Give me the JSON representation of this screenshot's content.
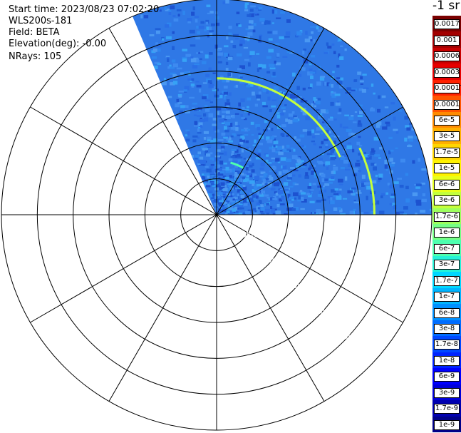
{
  "info": {
    "start_time": "Start time: 2023/08/23 07:02:20",
    "instrument": "WLS200s-181",
    "field": "Field: BETA",
    "elevation": "Elevation(deg): -0.00",
    "nrays": "NRays: 105"
  },
  "chart_data": {
    "type": "heatmap",
    "projection": "polar-ppi",
    "field": "BETA",
    "colorbar_title": "-1 sr",
    "colorbar_labels": [
      "0.0017",
      "0.001",
      "0.0006",
      "0.0003",
      "0.00017",
      "0.0001",
      "6e-5",
      "3e-5",
      "1.7e-5",
      "1e-5",
      "6e-6",
      "3e-6",
      "1.7e-6",
      "1e-6",
      "6e-7",
      "3e-7",
      "1.7e-7",
      "1e-7",
      "6e-8",
      "3e-8",
      "1.7e-8",
      "1e-8",
      "6e-9",
      "3e-9",
      "1.7e-9",
      "1e-9"
    ],
    "colorbar_colors": [
      "#7a0000",
      "#a30000",
      "#c80000",
      "#e60000",
      "#ff2000",
      "#ff5500",
      "#ff8a00",
      "#ffb000",
      "#ffd500",
      "#fff200",
      "#e8ff1a",
      "#c4ff3b",
      "#9dff5e",
      "#76ff85",
      "#4dffaf",
      "#25f2d8",
      "#00d8ff",
      "#00b4ff",
      "#0090ff",
      "#006cff",
      "#0048ff",
      "#0024ff",
      "#0000ff",
      "#0000d8",
      "#0000b0",
      "#000088"
    ],
    "range_rings_km": [
      "1.00km",
      "2.00km",
      "3.00km",
      "4.00km",
      "5.00km"
    ],
    "first_ring_label": "0",
    "ring_count": 6,
    "spoke_count": 12,
    "data_sector_deg": [
      -23,
      90
    ],
    "background_color": "#2f78e6",
    "streaks": [
      {
        "az_start": 0,
        "az_end": 65,
        "range_km": 3.8,
        "color": "#c4ff3b"
      },
      {
        "az_start": 65,
        "az_end": 92,
        "range_km": 4.4,
        "color": "#c4ff3b"
      },
      {
        "az_start": 15,
        "az_end": 30,
        "range_km": 1.5,
        "color": "#4dffaf"
      }
    ],
    "radials": [
      {
        "az": 98,
        "from_km": 1.8,
        "to_km": 4.2,
        "color": "#c4ff3b"
      },
      {
        "az": 114,
        "from_km": 1.2,
        "to_km": 3.4,
        "color": "#76ff85"
      },
      {
        "az": 130,
        "from_km": 0.6,
        "to_km": 3.4,
        "color": "#4dffaf"
      },
      {
        "az": 150,
        "from_km": 0.8,
        "to_km": 3.0,
        "color": "#25f2d8"
      },
      {
        "az": 172,
        "from_km": 0.8,
        "to_km": 2.9,
        "color": "#25f2d8"
      }
    ]
  }
}
